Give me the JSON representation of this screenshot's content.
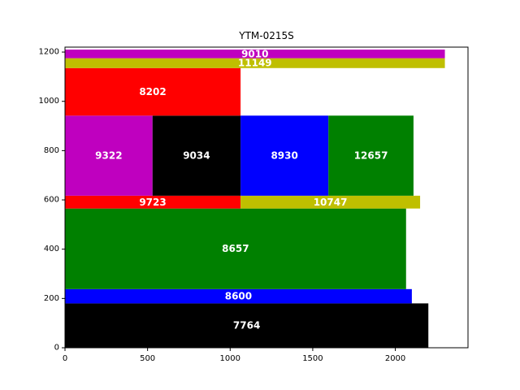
{
  "chart_data": {
    "type": "bar",
    "subtype": "rectangle-packing",
    "title": "YTM-0215S",
    "xlabel": "",
    "ylabel": "",
    "xlim": [
      0,
      2440
    ],
    "ylim": [
      0,
      1220
    ],
    "xticks": [
      0,
      500,
      1000,
      1500,
      2000
    ],
    "yticks": [
      0,
      200,
      400,
      600,
      800,
      1000,
      1200
    ],
    "grid": false,
    "rects": [
      {
        "label": "7764",
        "x0": 0,
        "x1": 2200,
        "y0": 0,
        "y1": 180,
        "color": "#000000"
      },
      {
        "label": "8600",
        "x0": 0,
        "x1": 2100,
        "y0": 180,
        "y1": 238,
        "color": "#0000ff"
      },
      {
        "label": "8657",
        "x0": 0,
        "x1": 2065,
        "y0": 238,
        "y1": 565,
        "color": "#008000"
      },
      {
        "label": "9723",
        "x0": 0,
        "x1": 1063,
        "y0": 565,
        "y1": 617,
        "color": "#ff0000"
      },
      {
        "label": "10747",
        "x0": 1063,
        "x1": 2150,
        "y0": 565,
        "y1": 617,
        "color": "#bfbf00"
      },
      {
        "label": "9322",
        "x0": 0,
        "x1": 530,
        "y0": 617,
        "y1": 942,
        "color": "#bf00bf"
      },
      {
        "label": "9034",
        "x0": 530,
        "x1": 1063,
        "y0": 617,
        "y1": 942,
        "color": "#000000"
      },
      {
        "label": "8930",
        "x0": 1063,
        "x1": 1595,
        "y0": 617,
        "y1": 942,
        "color": "#0000ff"
      },
      {
        "label": "12657",
        "x0": 1595,
        "x1": 2110,
        "y0": 617,
        "y1": 942,
        "color": "#008000"
      },
      {
        "label": "8202",
        "x0": 0,
        "x1": 1063,
        "y0": 942,
        "y1": 1135,
        "color": "#ff0000"
      },
      {
        "label": "11149",
        "x0": 0,
        "x1": 2300,
        "y0": 1135,
        "y1": 1175,
        "color": "#bfbf00"
      },
      {
        "label": "9010",
        "x0": 0,
        "x1": 2300,
        "y0": 1175,
        "y1": 1210,
        "color": "#bf00bf"
      }
    ]
  }
}
